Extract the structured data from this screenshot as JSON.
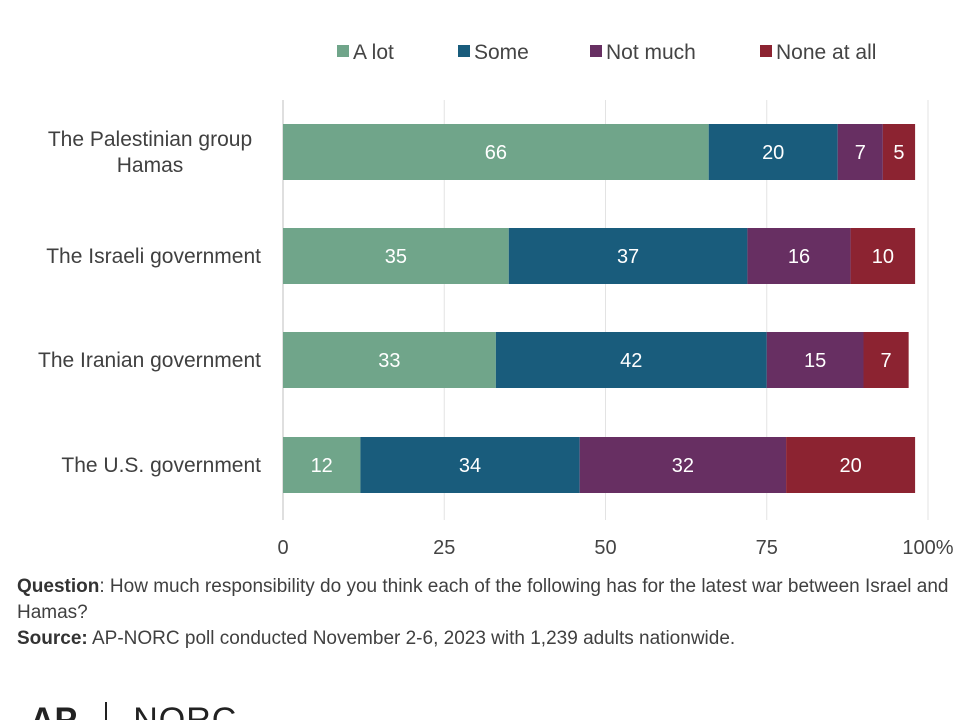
{
  "chart_data": {
    "type": "bar",
    "orientation": "horizontal",
    "stacked": true,
    "categories": [
      "The Palestinian group Hamas",
      "The Israeli government",
      "The Iranian government",
      "The U.S. government"
    ],
    "category_lines": [
      [
        "The Palestinian group",
        "Hamas"
      ],
      [
        "The Israeli government"
      ],
      [
        "The Iranian government"
      ],
      [
        "The U.S. government"
      ]
    ],
    "series": [
      {
        "name": "A lot",
        "color": "#70a58a",
        "values": [
          66,
          35,
          33,
          12
        ]
      },
      {
        "name": "Some",
        "color": "#195c7c",
        "values": [
          20,
          37,
          42,
          34
        ]
      },
      {
        "name": "Not much",
        "color": "#672f62",
        "values": [
          7,
          16,
          15,
          32
        ]
      },
      {
        "name": "None at all",
        "color": "#8c2331",
        "values": [
          5,
          10,
          7,
          20
        ]
      }
    ],
    "xlim": [
      0,
      100
    ],
    "ticks": [
      0,
      25,
      50,
      75,
      100
    ],
    "tick_labels": [
      "0",
      "25",
      "50",
      "75",
      "100%"
    ],
    "grid": true,
    "legend_position": "top",
    "data_labels": true
  },
  "footer": {
    "question_label": "Question",
    "question_text": ": How much responsibility do you think each of the following has for the latest war between Israel and Hamas?",
    "source_label": "Source:",
    "source_text": " AP-NORC poll conducted November 2-6, 2023 with 1,239 adults nationwide."
  },
  "logo": {
    "left": "AP",
    "right": "NORC"
  }
}
